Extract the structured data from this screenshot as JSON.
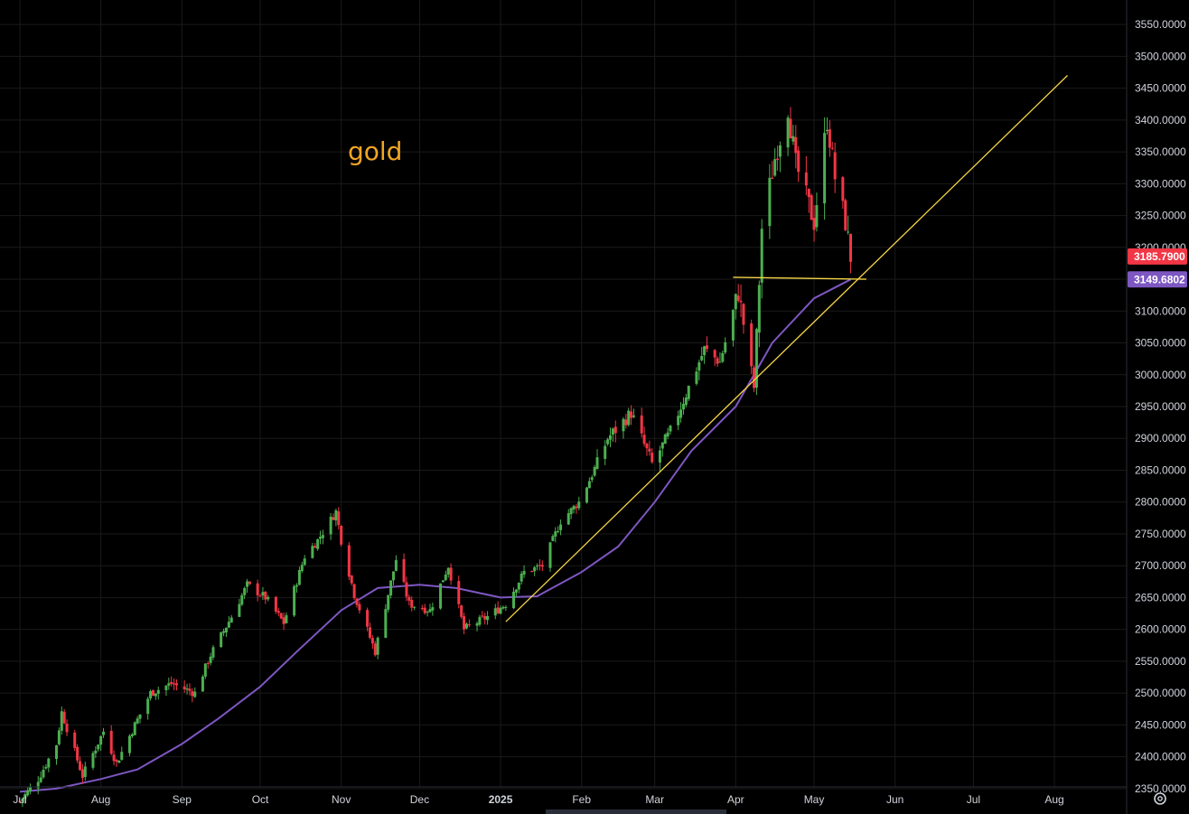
{
  "chart_data": {
    "type": "candlestick",
    "symbol_note": "gold",
    "colors": {
      "background": "#000000",
      "grid": "#1a1a1a",
      "up": "#26a69a",
      "up_body": "#4caf50",
      "down": "#f23645",
      "ma": "#7e57c2",
      "trendline": "#f5d547",
      "annotation": "#f0a624"
    },
    "y_axis": {
      "ylim": [
        2320,
        3580
      ],
      "ticks": [
        "2350.0000",
        "2400.0000",
        "2450.0000",
        "2500.0000",
        "2550.0000",
        "2600.0000",
        "2650.0000",
        "2700.0000",
        "2750.0000",
        "2800.0000",
        "2850.0000",
        "2900.0000",
        "2950.0000",
        "3000.0000",
        "3050.0000",
        "3100.0000",
        "3150.0000",
        "3200.0000",
        "3250.0000",
        "3300.0000",
        "3350.0000",
        "3400.0000",
        "3450.0000",
        "3500.0000",
        "3550.0000"
      ],
      "badges": [
        {
          "label": "3185.7900",
          "value": 3185.79,
          "color": "#f23645"
        },
        {
          "label": "3149.6802",
          "value": 3149.68,
          "color": "#7e57c2"
        }
      ]
    },
    "x_axis": {
      "start": "2024-07-01",
      "end": "2025-08-20",
      "ticks": [
        {
          "label": "Jul",
          "date": "2024-07-01",
          "bold": false
        },
        {
          "label": "Aug",
          "date": "2024-08-01",
          "bold": false
        },
        {
          "label": "Sep",
          "date": "2024-09-01",
          "bold": false
        },
        {
          "label": "Oct",
          "date": "2024-10-01",
          "bold": false
        },
        {
          "label": "Nov",
          "date": "2024-11-01",
          "bold": false
        },
        {
          "label": "Dec",
          "date": "2024-12-01",
          "bold": false
        },
        {
          "label": "2025",
          "date": "2025-01-01",
          "bold": true
        },
        {
          "label": "Feb",
          "date": "2025-02-01",
          "bold": false
        },
        {
          "label": "Mar",
          "date": "2025-03-01",
          "bold": false
        },
        {
          "label": "Apr",
          "date": "2025-04-01",
          "bold": false
        },
        {
          "label": "May",
          "date": "2025-05-01",
          "bold": false
        },
        {
          "label": "Jun",
          "date": "2025-06-01",
          "bold": false
        },
        {
          "label": "Jul",
          "date": "2025-07-01",
          "bold": false
        },
        {
          "label": "Aug",
          "date": "2025-08-01",
          "bold": false
        }
      ]
    },
    "close_path": [
      [
        "2024-07-01",
        2330
      ],
      [
        "2024-07-08",
        2365
      ],
      [
        "2024-07-15",
        2420
      ],
      [
        "2024-07-17",
        2470
      ],
      [
        "2024-07-25",
        2370
      ],
      [
        "2024-08-02",
        2440
      ],
      [
        "2024-08-07",
        2390
      ],
      [
        "2024-08-14",
        2450
      ],
      [
        "2024-08-20",
        2500
      ],
      [
        "2024-08-28",
        2515
      ],
      [
        "2024-09-06",
        2500
      ],
      [
        "2024-09-12",
        2560
      ],
      [
        "2024-09-20",
        2620
      ],
      [
        "2024-09-26",
        2670
      ],
      [
        "2024-10-03",
        2650
      ],
      [
        "2024-10-10",
        2610
      ],
      [
        "2024-10-18",
        2715
      ],
      [
        "2024-10-23",
        2740
      ],
      [
        "2024-10-30",
        2785
      ],
      [
        "2024-11-01",
        2740
      ],
      [
        "2024-11-06",
        2655
      ],
      [
        "2024-11-14",
        2565
      ],
      [
        "2024-11-22",
        2710
      ],
      [
        "2024-11-27",
        2640
      ],
      [
        "2024-12-05",
        2630
      ],
      [
        "2024-12-12",
        2700
      ],
      [
        "2024-12-18",
        2600
      ],
      [
        "2024-12-27",
        2620
      ],
      [
        "2025-01-03",
        2640
      ],
      [
        "2025-01-10",
        2690
      ],
      [
        "2025-01-17",
        2700
      ],
      [
        "2025-01-24",
        2770
      ],
      [
        "2025-01-31",
        2800
      ],
      [
        "2025-02-07",
        2860
      ],
      [
        "2025-02-11",
        2900
      ],
      [
        "2025-02-20",
        2940
      ],
      [
        "2025-02-28",
        2860
      ],
      [
        "2025-03-07",
        2910
      ],
      [
        "2025-03-14",
        2980
      ],
      [
        "2025-03-20",
        3040
      ],
      [
        "2025-03-26",
        3020
      ],
      [
        "2025-04-02",
        3130
      ],
      [
        "2025-04-08",
        2980
      ],
      [
        "2025-04-11",
        3230
      ],
      [
        "2025-04-16",
        3340
      ],
      [
        "2025-04-21",
        3420
      ],
      [
        "2025-04-24",
        3330
      ],
      [
        "2025-05-01",
        3240
      ],
      [
        "2025-05-06",
        3400
      ],
      [
        "2025-05-09",
        3310
      ],
      [
        "2025-05-13",
        3240
      ],
      [
        "2025-05-15",
        3185
      ]
    ],
    "moving_average": [
      [
        "2024-07-01",
        2345
      ],
      [
        "2024-07-15",
        2350
      ],
      [
        "2024-08-01",
        2365
      ],
      [
        "2024-08-15",
        2380
      ],
      [
        "2024-09-01",
        2420
      ],
      [
        "2024-09-15",
        2460
      ],
      [
        "2024-10-01",
        2510
      ],
      [
        "2024-10-15",
        2565
      ],
      [
        "2024-11-01",
        2630
      ],
      [
        "2024-11-15",
        2665
      ],
      [
        "2024-12-01",
        2670
      ],
      [
        "2024-12-15",
        2665
      ],
      [
        "2025-01-01",
        2650
      ],
      [
        "2025-01-15",
        2652
      ],
      [
        "2025-02-01",
        2690
      ],
      [
        "2025-02-15",
        2730
      ],
      [
        "2025-03-01",
        2800
      ],
      [
        "2025-03-15",
        2880
      ],
      [
        "2025-04-01",
        2950
      ],
      [
        "2025-04-15",
        3050
      ],
      [
        "2025-05-01",
        3120
      ],
      [
        "2025-05-15",
        3149.68
      ]
    ],
    "trendlines": [
      {
        "from": [
          "2025-01-03",
          2612
        ],
        "to": [
          "2025-08-06",
          3470
        ]
      },
      {
        "from": [
          "2025-03-31",
          3153
        ],
        "to": [
          "2025-05-21",
          3150
        ]
      }
    ]
  },
  "annotations": {
    "label": "gold"
  }
}
